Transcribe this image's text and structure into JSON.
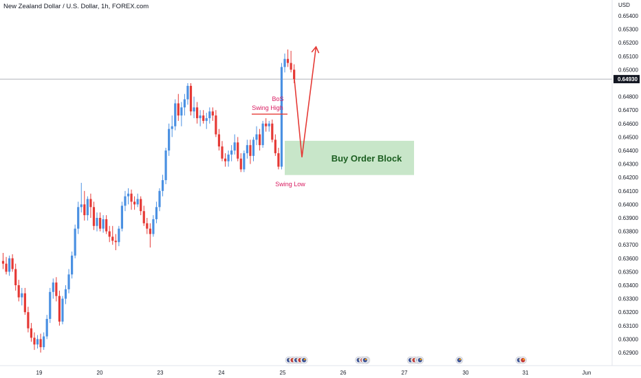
{
  "header": {
    "title": "New Zealand Dollar / U.S. Dollar, 1h, FOREX.com"
  },
  "colors": {
    "up": "#4a90e2",
    "down": "#e53935",
    "annotation": "#e53935",
    "order_block": "#c8e6c9",
    "order_block_text": "#1b5e20",
    "label": "#d81b60"
  },
  "chart_data": {
    "type": "candlestick",
    "title": "New Zealand Dollar / U.S. Dollar, 1h, FOREX.com",
    "yaxis": {
      "currency": "USD",
      "ticks": [
        "0.65400",
        "0.65300",
        "0.65200",
        "0.65100",
        "0.65000",
        "0.64800",
        "0.64700",
        "0.64600",
        "0.64500",
        "0.64400",
        "0.64300",
        "0.64200",
        "0.64100",
        "0.64000",
        "0.63900",
        "0.63800",
        "0.63700",
        "0.63600",
        "0.63500",
        "0.63400",
        "0.63300",
        "0.63200",
        "0.63100",
        "0.63000",
        "0.62900"
      ],
      "range": [
        0.6286,
        0.6545
      ]
    },
    "current_price": "0.64930",
    "xaxis": {
      "ticks": [
        "19",
        "20",
        "23",
        "24",
        "25",
        "26",
        "27",
        "30",
        "31",
        "Jun"
      ]
    },
    "candles": [
      [
        0.6358,
        0.6364,
        0.6352,
        0.6356
      ],
      [
        0.6356,
        0.6361,
        0.6348,
        0.635
      ],
      [
        0.635,
        0.6362,
        0.6347,
        0.636
      ],
      [
        0.636,
        0.6363,
        0.635,
        0.6352
      ],
      [
        0.6352,
        0.6356,
        0.6336,
        0.634
      ],
      [
        0.634,
        0.6344,
        0.6328,
        0.6331
      ],
      [
        0.6331,
        0.6338,
        0.6325,
        0.6334
      ],
      [
        0.6334,
        0.6338,
        0.6318,
        0.632
      ],
      [
        0.632,
        0.6324,
        0.6305,
        0.6308
      ],
      [
        0.6308,
        0.6312,
        0.6298,
        0.6301
      ],
      [
        0.6301,
        0.6305,
        0.6292,
        0.6296
      ],
      [
        0.6296,
        0.6303,
        0.6293,
        0.63
      ],
      [
        0.63,
        0.6304,
        0.629,
        0.6294
      ],
      [
        0.6294,
        0.6305,
        0.6292,
        0.6302
      ],
      [
        0.6302,
        0.6318,
        0.63,
        0.6315
      ],
      [
        0.6315,
        0.6338,
        0.6312,
        0.6335
      ],
      [
        0.6335,
        0.6345,
        0.633,
        0.6342
      ],
      [
        0.6342,
        0.6346,
        0.6328,
        0.6332
      ],
      [
        0.6332,
        0.6336,
        0.631,
        0.6313
      ],
      [
        0.6313,
        0.6332,
        0.6311,
        0.633
      ],
      [
        0.633,
        0.634,
        0.6326,
        0.6337
      ],
      [
        0.6337,
        0.6352,
        0.6334,
        0.6348
      ],
      [
        0.6348,
        0.6365,
        0.6345,
        0.6362
      ],
      [
        0.6362,
        0.6385,
        0.636,
        0.6382
      ],
      [
        0.6382,
        0.6402,
        0.6378,
        0.6398
      ],
      [
        0.6398,
        0.6416,
        0.6394,
        0.64
      ],
      [
        0.64,
        0.641,
        0.6388,
        0.6392
      ],
      [
        0.6392,
        0.6406,
        0.6388,
        0.6404
      ],
      [
        0.6404,
        0.6408,
        0.639,
        0.6398
      ],
      [
        0.6398,
        0.6402,
        0.6381,
        0.6384
      ],
      [
        0.6384,
        0.6394,
        0.638,
        0.639
      ],
      [
        0.639,
        0.6394,
        0.638,
        0.6382
      ],
      [
        0.6382,
        0.6392,
        0.6379,
        0.6389
      ],
      [
        0.6389,
        0.6392,
        0.6378,
        0.638
      ],
      [
        0.638,
        0.6384,
        0.6372,
        0.6376
      ],
      [
        0.6376,
        0.6384,
        0.637,
        0.6373
      ],
      [
        0.6373,
        0.6378,
        0.6366,
        0.6372
      ],
      [
        0.6372,
        0.6384,
        0.6369,
        0.6382
      ],
      [
        0.6382,
        0.6402,
        0.638,
        0.6399
      ],
      [
        0.6399,
        0.641,
        0.6395,
        0.6406
      ],
      [
        0.6406,
        0.6412,
        0.64,
        0.6408
      ],
      [
        0.6408,
        0.6411,
        0.6396,
        0.6402
      ],
      [
        0.6402,
        0.6406,
        0.6396,
        0.64
      ],
      [
        0.64,
        0.6408,
        0.6398,
        0.6404
      ],
      [
        0.6404,
        0.6406,
        0.6392,
        0.6395
      ],
      [
        0.6395,
        0.6399,
        0.6384,
        0.6386
      ],
      [
        0.6386,
        0.639,
        0.6378,
        0.6382
      ],
      [
        0.6382,
        0.6386,
        0.6368,
        0.6378
      ],
      [
        0.6378,
        0.6392,
        0.6376,
        0.6389
      ],
      [
        0.6389,
        0.6402,
        0.6386,
        0.6398
      ],
      [
        0.6398,
        0.6412,
        0.6395,
        0.641
      ],
      [
        0.641,
        0.6422,
        0.6406,
        0.6418
      ],
      [
        0.6418,
        0.6442,
        0.6415,
        0.644
      ],
      [
        0.644,
        0.646,
        0.6436,
        0.6456
      ],
      [
        0.6456,
        0.6466,
        0.645,
        0.6458
      ],
      [
        0.6458,
        0.6478,
        0.6455,
        0.6475
      ],
      [
        0.6475,
        0.6482,
        0.6462,
        0.6466
      ],
      [
        0.6466,
        0.6476,
        0.6458,
        0.6472
      ],
      [
        0.6472,
        0.6482,
        0.6466,
        0.6478
      ],
      [
        0.6478,
        0.649,
        0.6474,
        0.6488
      ],
      [
        0.6488,
        0.649,
        0.6466,
        0.6469
      ],
      [
        0.6469,
        0.648,
        0.6464,
        0.6472
      ],
      [
        0.6472,
        0.6476,
        0.646,
        0.6464
      ],
      [
        0.6464,
        0.647,
        0.6458,
        0.6466
      ],
      [
        0.6466,
        0.647,
        0.646,
        0.6462
      ],
      [
        0.6462,
        0.6468,
        0.6456,
        0.6464
      ],
      [
        0.6464,
        0.6472,
        0.646,
        0.6469
      ],
      [
        0.6469,
        0.6472,
        0.6462,
        0.6466
      ],
      [
        0.6466,
        0.647,
        0.645,
        0.6452
      ],
      [
        0.6452,
        0.6456,
        0.644,
        0.6443
      ],
      [
        0.6443,
        0.6447,
        0.6432,
        0.6434
      ],
      [
        0.6434,
        0.6438,
        0.6428,
        0.6432
      ],
      [
        0.6432,
        0.644,
        0.6428,
        0.6437
      ],
      [
        0.6437,
        0.6444,
        0.6432,
        0.644
      ],
      [
        0.644,
        0.6452,
        0.6437,
        0.6446
      ],
      [
        0.6446,
        0.645,
        0.6432,
        0.6434
      ],
      [
        0.6434,
        0.6438,
        0.6424,
        0.6426
      ],
      [
        0.6426,
        0.644,
        0.6424,
        0.6438
      ],
      [
        0.6438,
        0.6448,
        0.6434,
        0.6444
      ],
      [
        0.6444,
        0.6448,
        0.643,
        0.6436
      ],
      [
        0.6436,
        0.645,
        0.6432,
        0.6448
      ],
      [
        0.6448,
        0.6458,
        0.6444,
        0.6452
      ],
      [
        0.6452,
        0.6456,
        0.644,
        0.6444
      ],
      [
        0.6444,
        0.6462,
        0.6442,
        0.646
      ],
      [
        0.646,
        0.6464,
        0.6454,
        0.6458
      ],
      [
        0.6458,
        0.6462,
        0.6454,
        0.646
      ],
      [
        0.646,
        0.6463,
        0.6446,
        0.6448
      ],
      [
        0.6448,
        0.6452,
        0.6436,
        0.6438
      ],
      [
        0.6438,
        0.6442,
        0.6426,
        0.6428
      ],
      [
        0.6428,
        0.6505,
        0.6426,
        0.6502
      ],
      [
        0.6502,
        0.6512,
        0.6498,
        0.6508
      ],
      [
        0.6508,
        0.6515,
        0.6502,
        0.6505
      ],
      [
        0.6505,
        0.6514,
        0.6498,
        0.65
      ],
      [
        0.65,
        0.6504,
        0.649,
        0.6493
      ]
    ],
    "annotations": {
      "bos_label": "BoS",
      "swing_high_label": "Swing High",
      "swing_low_label": "Swing Low",
      "order_block_label": "Buy Order Block",
      "order_block_range": [
        0.64218,
        0.64472
      ],
      "swing_high_level": 0.6467,
      "projection": [
        {
          "bar": 93,
          "price": 0.6495
        },
        {
          "bar": 95.5,
          "price": 0.6435
        },
        {
          "bar": 100,
          "price": 0.6517
        }
      ]
    },
    "event_icons": {
      "groups": [
        {
          "date": "25",
          "count": 5,
          "offset_bars": 2
        },
        {
          "date": "26",
          "count": 3,
          "offset_bars": 5
        },
        {
          "date": "26",
          "count": 1,
          "offset_bars": 7
        },
        {
          "date": "27",
          "count": 3,
          "offset_bars": 2
        },
        {
          "date": "27",
          "count": 1,
          "offset_bars": 5
        },
        {
          "date": "30",
          "count": 1,
          "offset_bars": -2
        },
        {
          "date": "31",
          "count": 2,
          "offset_bars": -2
        }
      ]
    },
    "grid": false
  }
}
